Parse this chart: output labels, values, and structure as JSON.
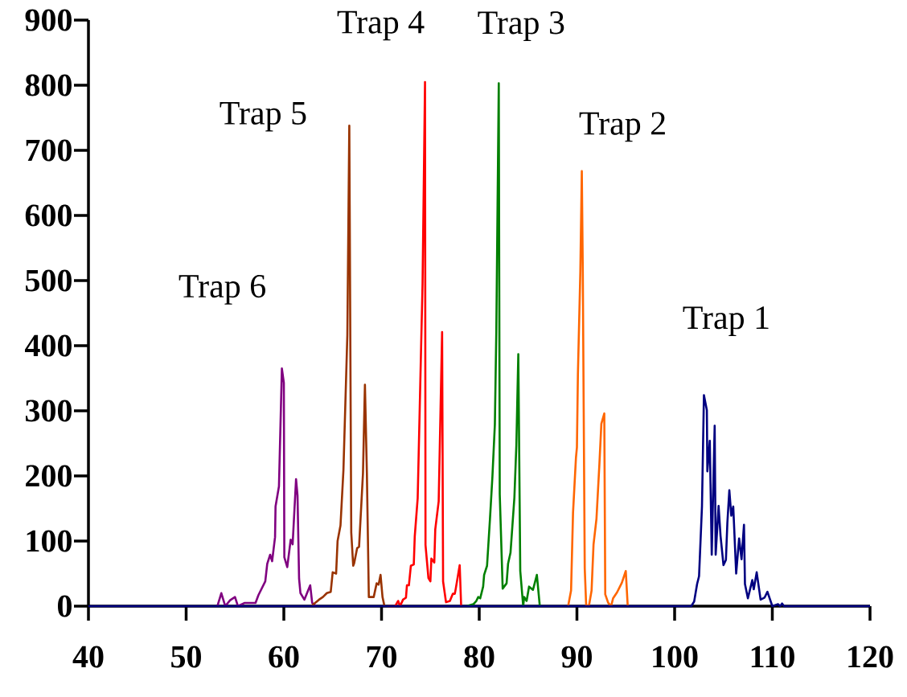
{
  "chart_data": {
    "type": "line",
    "xlim": [
      40,
      120
    ],
    "ylim": [
      0,
      900
    ],
    "xticks": [
      40,
      50,
      60,
      70,
      80,
      90,
      100,
      110,
      120
    ],
    "yticks": [
      0,
      100,
      200,
      300,
      400,
      500,
      600,
      700,
      800,
      900
    ],
    "grid": false,
    "marker": "none",
    "line_style": "solid",
    "series": [
      {
        "name": "Trap 6",
        "color": "#800080",
        "x": [
          53.2,
          53.6,
          54.0,
          54.5,
          55.0,
          55.3,
          56.0,
          57.1,
          57.4,
          58.1,
          58.3,
          58.6,
          58.8,
          59.1,
          59.15,
          59.5,
          59.8,
          60.0,
          60.05,
          60.35,
          60.7,
          60.9,
          61.25,
          61.4,
          61.56,
          61.7,
          62.1,
          62.7,
          62.9,
          63.3
        ],
        "values": [
          0,
          20,
          0,
          9,
          14,
          0,
          5,
          5,
          17,
          38,
          65,
          79,
          69,
          106,
          153,
          184,
          365,
          343,
          75,
          60,
          102,
          95,
          195,
          170,
          42,
          20,
          10,
          32,
          5,
          0
        ]
      },
      {
        "name": "Trap 5",
        "color": "#993300",
        "x": [
          62.8,
          63.2,
          63.6,
          64.0,
          64.4,
          64.8,
          65.0,
          65.35,
          65.5,
          65.8,
          66.1,
          66.5,
          66.7,
          66.9,
          67.1,
          67.2,
          67.5,
          67.7,
          68.1,
          68.3,
          68.5,
          68.7,
          69.2,
          69.5,
          69.7,
          69.9,
          70.1,
          70.3
        ],
        "values": [
          0,
          5,
          10,
          14,
          20,
          22,
          52,
          50,
          100,
          124,
          209,
          416,
          738,
          113,
          62,
          66,
          89,
          91,
          204,
          340,
          204,
          14,
          14,
          35,
          33,
          48,
          14,
          0
        ]
      },
      {
        "name": "Trap 4",
        "color": "#ff0000",
        "x": [
          70.65,
          71.4,
          71.7,
          71.9,
          72.2,
          72.5,
          72.6,
          72.8,
          73.0,
          73.3,
          73.4,
          73.7,
          74.2,
          74.45,
          74.5,
          74.8,
          75.0,
          75.1,
          75.4,
          75.5,
          75.85,
          76.2,
          76.3,
          76.6,
          77.0,
          77.3,
          77.5,
          77.6,
          78.0,
          78.15
        ],
        "values": [
          0,
          0,
          8,
          0,
          10,
          13,
          32,
          32,
          62,
          64,
          107,
          166,
          496,
          805,
          94,
          43,
          38,
          73,
          67,
          118,
          161,
          421,
          38,
          6,
          8,
          19,
          19,
          27,
          63,
          0
        ]
      },
      {
        "name": "Trap 3",
        "color": "#008000",
        "x": [
          78.7,
          79.4,
          79.7,
          79.9,
          80.1,
          80.4,
          80.5,
          80.8,
          81.1,
          81.35,
          81.6,
          81.75,
          82.0,
          82.1,
          82.4,
          82.8,
          82.95,
          83.2,
          83.6,
          83.8,
          84.0,
          84.2,
          84.5,
          84.6,
          84.85,
          85.1,
          85.5,
          85.9,
          86.2
        ],
        "values": [
          0,
          3,
          8,
          14,
          12,
          30,
          48,
          62,
          134,
          199,
          279,
          423,
          803,
          172,
          27,
          35,
          65,
          82,
          167,
          247,
          387,
          54,
          0,
          14,
          8,
          30,
          25,
          48,
          0
        ]
      },
      {
        "name": "Trap 2",
        "color": "#ff6600",
        "x": [
          89.1,
          89.4,
          89.6,
          89.9,
          90.0,
          90.1,
          90.35,
          90.5,
          90.6,
          90.8,
          90.95,
          91.25,
          91.5,
          91.7,
          92.0,
          92.3,
          92.5,
          92.8,
          92.9,
          93.2,
          93.5,
          93.7,
          94.1,
          94.6,
          95.0,
          95.2
        ],
        "values": [
          0,
          24,
          143,
          228,
          244,
          356,
          514,
          668,
          514,
          58,
          0,
          2,
          24,
          95,
          134,
          218,
          280,
          296,
          18,
          5,
          0,
          12,
          21,
          36,
          54,
          0
        ]
      },
      {
        "name": "Trap 1",
        "color": "#000080",
        "x": [
          40,
          101.7,
          102.0,
          102.3,
          102.5,
          102.8,
          103.0,
          103.3,
          103.35,
          103.6,
          103.8,
          104.1,
          104.2,
          104.5,
          104.7,
          105.0,
          105.25,
          105.4,
          105.6,
          105.8,
          106.0,
          106.3,
          106.6,
          106.85,
          107.1,
          107.2,
          107.5,
          107.95,
          108.1,
          108.4,
          108.8,
          109.2,
          109.5,
          110.0,
          110.6,
          110.8,
          111.0,
          111.2,
          120
        ],
        "values": [
          0,
          0,
          7,
          34,
          46,
          153,
          324,
          301,
          207,
          254,
          79,
          277,
          79,
          154,
          108,
          63,
          71,
          128,
          178,
          139,
          153,
          50,
          104,
          72,
          125,
          34,
          12,
          40,
          26,
          52,
          10,
          13,
          22,
          0,
          3,
          0,
          4,
          0,
          0
        ]
      }
    ]
  }
}
